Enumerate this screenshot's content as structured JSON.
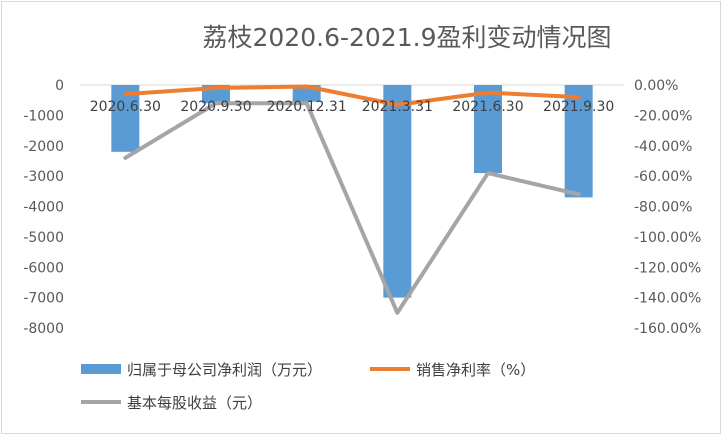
{
  "chart_data": {
    "type": "bar",
    "title": "荔枝2020.6-2021.9盈利变动情况图",
    "categories": [
      "2020.6.30",
      "2020.9.30",
      "2020.12.31",
      "2021.3.31",
      "2021.6.30",
      "2021.9.30"
    ],
    "series": [
      {
        "name": "归属于母公司净利润（万元）",
        "type": "bar",
        "axis": "left",
        "color": "#5b9bd5",
        "values": [
          -2200,
          -600,
          -550,
          -7000,
          -2900,
          -3700
        ]
      },
      {
        "name": "销售净利率（%）",
        "type": "line",
        "axis": "right",
        "color": "#ed7d31",
        "values": [
          -6,
          -2,
          -1,
          -13,
          -5,
          -8
        ]
      },
      {
        "name": "基本每股收益（元）",
        "type": "line",
        "axis": "left",
        "color": "#a5a5a5",
        "values": [
          -2400,
          -600,
          -600,
          -7500,
          -2900,
          -3600
        ]
      }
    ],
    "left_axis": {
      "ylim": [
        -8000,
        0
      ],
      "ticks": [
        0,
        -1000,
        -2000,
        -3000,
        -4000,
        -5000,
        -6000,
        -7000,
        -8000
      ],
      "tick_labels": [
        "0",
        "-1000",
        "-2000",
        "-3000",
        "-4000",
        "-5000",
        "-6000",
        "-7000",
        "-8000"
      ]
    },
    "right_axis": {
      "ylim": [
        -160,
        0
      ],
      "ticks": [
        0,
        -20,
        -40,
        -60,
        -80,
        -100,
        -120,
        -140,
        -160
      ],
      "tick_labels": [
        "0.00%",
        "-20.00%",
        "-40.00%",
        "-60.00%",
        "-80.00%",
        "-100.00%",
        "-120.00%",
        "-140.00%",
        "-160.00%"
      ]
    },
    "grid": false,
    "legend_position": "bottom"
  }
}
